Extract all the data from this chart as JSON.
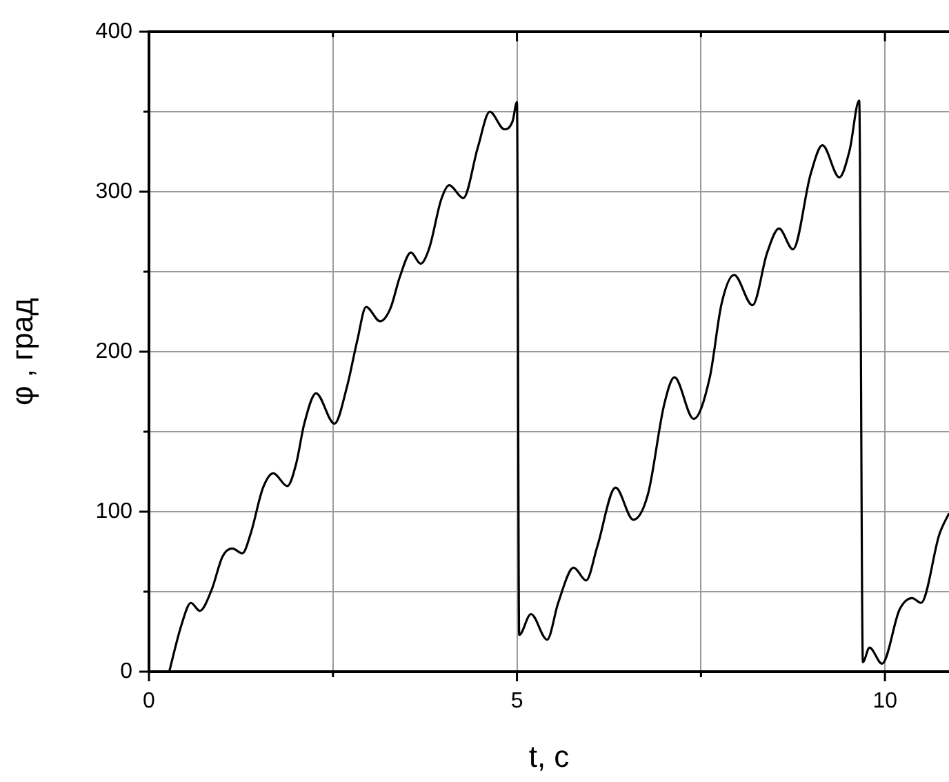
{
  "chart_data": {
    "type": "line",
    "xlabel": "t, с",
    "ylabel": "φ , град",
    "xlim": [
      0,
      10.87
    ],
    "ylim": [
      0,
      400
    ],
    "xticks": [
      0,
      {
        "value": 2.5,
        "label": null
      },
      5,
      {
        "value": 7.5,
        "label": null
      },
      10
    ],
    "yticks": [
      0,
      {
        "value": 50,
        "label": null
      },
      100,
      {
        "value": 150,
        "label": null
      },
      200,
      {
        "value": 250,
        "label": null
      },
      300,
      {
        "value": 350,
        "label": null
      },
      400
    ],
    "grid": true,
    "legend": false,
    "marker": "none",
    "line_style": "solid",
    "series": [
      {
        "color": "#000000",
        "x": [
          0.275,
          0.44,
          0.57,
          0.69,
          0.85,
          1.0,
          1.13,
          1.27,
          1.38,
          1.55,
          1.69,
          1.88,
          2.0,
          2.11,
          2.27,
          2.52,
          2.69,
          2.83,
          2.95,
          3.14,
          3.28,
          3.41,
          3.56,
          3.69,
          3.81,
          3.97,
          4.08,
          4.27,
          4.47,
          4.63,
          4.83,
          4.94,
          5.0,
          5.03,
          5.19,
          5.41,
          5.56,
          5.77,
          5.94,
          6.09,
          6.34,
          6.58,
          6.78,
          7.0,
          7.14,
          7.4,
          7.62,
          7.78,
          7.95,
          8.2,
          8.4,
          8.56,
          8.75,
          8.99,
          9.15,
          9.38,
          9.52,
          9.65,
          9.7,
          9.79,
          9.96,
          10.2,
          10.37,
          10.49,
          10.74,
          10.87
        ],
        "values": [
          0,
          29,
          43,
          38,
          51,
          72,
          77,
          74,
          86,
          115,
          124,
          116,
          130,
          155,
          174,
          155,
          178,
          207,
          228,
          219,
          227,
          247,
          262,
          255,
          265,
          295,
          304,
          296,
          328,
          350,
          339,
          344,
          356,
          23,
          36,
          20,
          43,
          65,
          57,
          78,
          115,
          95,
          111,
          167,
          184,
          158,
          184,
          230,
          248,
          229,
          262,
          277,
          264,
          311,
          329,
          309,
          326,
          357,
          6,
          15,
          5,
          39,
          46,
          43,
          86,
          99
        ]
      }
    ]
  }
}
